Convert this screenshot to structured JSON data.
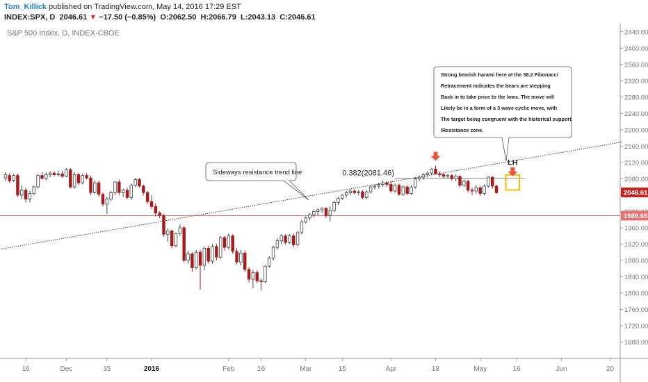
{
  "header": {
    "author": "Tom_Killick",
    "published_text": "published on TradingView.com, May 14, 2016 17:29 EST",
    "symbol": "INDEX:SPX, D",
    "last": "2046.61",
    "change_arrow": "▼",
    "change": "−17.50 (−0.85%)",
    "open_label": "O:",
    "open": "2062.50",
    "high_label": "H:",
    "high": "2066.79",
    "low_label": "L:",
    "low": "2043.13",
    "close_label": "C:",
    "close": "2046.61"
  },
  "chart_data": {
    "type": "candlestick",
    "title": "S&P 500 Index, D, INDEX-CBOE",
    "ylim": [
      1640,
      2460
    ],
    "y_ticks": [
      1680,
      1720,
      1760,
      1800,
      1840,
      1880,
      1920,
      1960,
      2000,
      2040,
      2080,
      2120,
      2160,
      2200,
      2240,
      2280,
      2320,
      2360,
      2400,
      2440
    ],
    "y_tick_labels": [
      "1680.00",
      "1720.00",
      "1760.00",
      "1800.00",
      "1840.00",
      "1880.00",
      "1920.00",
      "1960.00",
      "2000.00",
      "2040.00",
      "2080.00",
      "2120.00",
      "2160.00",
      "2200.00",
      "2240.00",
      "2280.00",
      "2320.00",
      "2360.00",
      "2400.00",
      "2440.00"
    ],
    "x_ticks": [
      {
        "i": 5,
        "label": "16"
      },
      {
        "i": 15,
        "label": "Dec"
      },
      {
        "i": 25,
        "label": "15"
      },
      {
        "i": 36,
        "label": "2016"
      },
      {
        "i": 55,
        "label": "Feb"
      },
      {
        "i": 63,
        "label": "16"
      },
      {
        "i": 74,
        "label": "Mar"
      },
      {
        "i": 83,
        "label": "15"
      },
      {
        "i": 95,
        "label": "Apr"
      },
      {
        "i": 106,
        "label": "18"
      },
      {
        "i": 117,
        "label": "May"
      },
      {
        "i": 126,
        "label": "16"
      },
      {
        "i": 137,
        "label": "Jun"
      },
      {
        "i": 149,
        "label": "20"
      }
    ],
    "x_count": 152,
    "candles": [
      {
        "o": 2082,
        "h": 2096,
        "l": 2074,
        "c": 2090
      },
      {
        "o": 2088,
        "h": 2094,
        "l": 2070,
        "c": 2075
      },
      {
        "o": 2076,
        "h": 2092,
        "l": 2072,
        "c": 2088
      },
      {
        "o": 2088,
        "h": 2092,
        "l": 2035,
        "c": 2040
      },
      {
        "o": 2040,
        "h": 2064,
        "l": 2030,
        "c": 2052
      },
      {
        "o": 2052,
        "h": 2058,
        "l": 2022,
        "c": 2030
      },
      {
        "o": 2030,
        "h": 2050,
        "l": 2022,
        "c": 2044
      },
      {
        "o": 2044,
        "h": 2064,
        "l": 2040,
        "c": 2060
      },
      {
        "o": 2060,
        "h": 2092,
        "l": 2056,
        "c": 2088
      },
      {
        "o": 2088,
        "h": 2096,
        "l": 2078,
        "c": 2081
      },
      {
        "o": 2081,
        "h": 2096,
        "l": 2076,
        "c": 2090
      },
      {
        "o": 2090,
        "h": 2098,
        "l": 2084,
        "c": 2094
      },
      {
        "o": 2094,
        "h": 2098,
        "l": 2086,
        "c": 2090
      },
      {
        "o": 2090,
        "h": 2100,
        "l": 2086,
        "c": 2092
      },
      {
        "o": 2092,
        "h": 2100,
        "l": 2082,
        "c": 2086
      },
      {
        "o": 2086,
        "h": 2106,
        "l": 2084,
        "c": 2102
      },
      {
        "o": 2102,
        "h": 2106,
        "l": 2056,
        "c": 2060
      },
      {
        "o": 2060,
        "h": 2096,
        "l": 2056,
        "c": 2090
      },
      {
        "o": 2090,
        "h": 2094,
        "l": 2064,
        "c": 2070
      },
      {
        "o": 2070,
        "h": 2092,
        "l": 2066,
        "c": 2088
      },
      {
        "o": 2088,
        "h": 2094,
        "l": 2078,
        "c": 2082
      },
      {
        "o": 2082,
        "h": 2088,
        "l": 2040,
        "c": 2046
      },
      {
        "o": 2046,
        "h": 2076,
        "l": 2042,
        "c": 2070
      },
      {
        "o": 2070,
        "h": 2076,
        "l": 2036,
        "c": 2042
      },
      {
        "o": 2042,
        "h": 2046,
        "l": 2012,
        "c": 2018
      },
      {
        "o": 2018,
        "h": 2036,
        "l": 1994,
        "c": 2030
      },
      {
        "o": 2030,
        "h": 2050,
        "l": 2024,
        "c": 2046
      },
      {
        "o": 2046,
        "h": 2074,
        "l": 2040,
        "c": 2072
      },
      {
        "o": 2072,
        "h": 2078,
        "l": 2040,
        "c": 2046
      },
      {
        "o": 2046,
        "h": 2056,
        "l": 2036,
        "c": 2052
      },
      {
        "o": 2052,
        "h": 2058,
        "l": 2030,
        "c": 2034
      },
      {
        "o": 2034,
        "h": 2068,
        "l": 2028,
        "c": 2064
      },
      {
        "o": 2064,
        "h": 2082,
        "l": 2060,
        "c": 2078
      },
      {
        "o": 2078,
        "h": 2082,
        "l": 2058,
        "c": 2062
      },
      {
        "o": 2062,
        "h": 2066,
        "l": 2040,
        "c": 2046
      },
      {
        "o": 2046,
        "h": 2050,
        "l": 2018,
        "c": 2024
      },
      {
        "o": 2024,
        "h": 2040,
        "l": 2006,
        "c": 2012
      },
      {
        "o": 2012,
        "h": 2020,
        "l": 1988,
        "c": 1996
      },
      {
        "o": 1996,
        "h": 2000,
        "l": 1984,
        "c": 1990
      },
      {
        "o": 1990,
        "h": 1994,
        "l": 1938,
        "c": 1944
      },
      {
        "o": 1944,
        "h": 1958,
        "l": 1926,
        "c": 1952
      },
      {
        "o": 1952,
        "h": 1956,
        "l": 1910,
        "c": 1916
      },
      {
        "o": 1916,
        "h": 1948,
        "l": 1912,
        "c": 1946
      },
      {
        "o": 1946,
        "h": 1968,
        "l": 1940,
        "c": 1960
      },
      {
        "o": 1960,
        "h": 1964,
        "l": 1874,
        "c": 1880
      },
      {
        "o": 1880,
        "h": 1904,
        "l": 1872,
        "c": 1896
      },
      {
        "o": 1896,
        "h": 1900,
        "l": 1852,
        "c": 1862
      },
      {
        "o": 1862,
        "h": 1906,
        "l": 1858,
        "c": 1900
      },
      {
        "o": 1900,
        "h": 1906,
        "l": 1808,
        "c": 1868
      },
      {
        "o": 1868,
        "h": 1914,
        "l": 1856,
        "c": 1910
      },
      {
        "o": 1910,
        "h": 1916,
        "l": 1872,
        "c": 1878
      },
      {
        "o": 1878,
        "h": 1920,
        "l": 1872,
        "c": 1914
      },
      {
        "o": 1914,
        "h": 1920,
        "l": 1880,
        "c": 1888
      },
      {
        "o": 1888,
        "h": 1940,
        "l": 1884,
        "c": 1936
      },
      {
        "o": 1936,
        "h": 1940,
        "l": 1904,
        "c": 1912
      },
      {
        "o": 1912,
        "h": 1946,
        "l": 1906,
        "c": 1940
      },
      {
        "o": 1940,
        "h": 1944,
        "l": 1896,
        "c": 1902
      },
      {
        "o": 1902,
        "h": 1910,
        "l": 1870,
        "c": 1876
      },
      {
        "o": 1876,
        "h": 1906,
        "l": 1868,
        "c": 1898
      },
      {
        "o": 1898,
        "h": 1904,
        "l": 1852,
        "c": 1858
      },
      {
        "o": 1858,
        "h": 1864,
        "l": 1826,
        "c": 1834
      },
      {
        "o": 1834,
        "h": 1856,
        "l": 1812,
        "c": 1850
      },
      {
        "o": 1850,
        "h": 1856,
        "l": 1824,
        "c": 1830
      },
      {
        "o": 1830,
        "h": 1836,
        "l": 1806,
        "c": 1828
      },
      {
        "o": 1828,
        "h": 1868,
        "l": 1824,
        "c": 1866
      },
      {
        "o": 1866,
        "h": 1890,
        "l": 1862,
        "c": 1886
      },
      {
        "o": 1886,
        "h": 1916,
        "l": 1880,
        "c": 1912
      },
      {
        "o": 1912,
        "h": 1934,
        "l": 1906,
        "c": 1928
      },
      {
        "o": 1928,
        "h": 1944,
        "l": 1920,
        "c": 1940
      },
      {
        "o": 1940,
        "h": 1944,
        "l": 1918,
        "c": 1924
      },
      {
        "o": 1924,
        "h": 1944,
        "l": 1920,
        "c": 1940
      },
      {
        "o": 1940,
        "h": 1946,
        "l": 1912,
        "c": 1918
      },
      {
        "o": 1918,
        "h": 1952,
        "l": 1914,
        "c": 1948
      },
      {
        "o": 1948,
        "h": 1978,
        "l": 1944,
        "c": 1974
      },
      {
        "o": 1974,
        "h": 1988,
        "l": 1970,
        "c": 1984
      },
      {
        "o": 1984,
        "h": 1996,
        "l": 1978,
        "c": 1992
      },
      {
        "o": 1992,
        "h": 2004,
        "l": 1986,
        "c": 2000
      },
      {
        "o": 2000,
        "h": 2008,
        "l": 1990,
        "c": 2004
      },
      {
        "o": 2004,
        "h": 2010,
        "l": 1996,
        "c": 2008
      },
      {
        "o": 2008,
        "h": 2010,
        "l": 1984,
        "c": 1990
      },
      {
        "o": 1990,
        "h": 2012,
        "l": 1976,
        "c": 2002
      },
      {
        "o": 2002,
        "h": 2026,
        "l": 1998,
        "c": 2022
      },
      {
        "o": 2022,
        "h": 2036,
        "l": 2016,
        "c": 2032
      },
      {
        "o": 2032,
        "h": 2042,
        "l": 2028,
        "c": 2040
      },
      {
        "o": 2040,
        "h": 2050,
        "l": 2034,
        "c": 2046
      },
      {
        "o": 2046,
        "h": 2054,
        "l": 2040,
        "c": 2050
      },
      {
        "o": 2050,
        "h": 2054,
        "l": 2042,
        "c": 2046
      },
      {
        "o": 2046,
        "h": 2052,
        "l": 2040,
        "c": 2048
      },
      {
        "o": 2048,
        "h": 2052,
        "l": 2030,
        "c": 2034
      },
      {
        "o": 2034,
        "h": 2052,
        "l": 2030,
        "c": 2048
      },
      {
        "o": 2048,
        "h": 2064,
        "l": 2044,
        "c": 2060
      },
      {
        "o": 2060,
        "h": 2066,
        "l": 2054,
        "c": 2062
      },
      {
        "o": 2062,
        "h": 2070,
        "l": 2056,
        "c": 2066
      },
      {
        "o": 2066,
        "h": 2076,
        "l": 2060,
        "c": 2070
      },
      {
        "o": 2070,
        "h": 2074,
        "l": 2060,
        "c": 2066
      },
      {
        "o": 2066,
        "h": 2074,
        "l": 2046,
        "c": 2050
      },
      {
        "o": 2050,
        "h": 2068,
        "l": 2046,
        "c": 2064
      },
      {
        "o": 2064,
        "h": 2068,
        "l": 2038,
        "c": 2042
      },
      {
        "o": 2042,
        "h": 2064,
        "l": 2038,
        "c": 2060
      },
      {
        "o": 2060,
        "h": 2064,
        "l": 2040,
        "c": 2044
      },
      {
        "o": 2044,
        "h": 2064,
        "l": 2040,
        "c": 2060
      },
      {
        "o": 2060,
        "h": 2084,
        "l": 2056,
        "c": 2080
      },
      {
        "o": 2080,
        "h": 2088,
        "l": 2074,
        "c": 2084
      },
      {
        "o": 2084,
        "h": 2094,
        "l": 2078,
        "c": 2090
      },
      {
        "o": 2090,
        "h": 2098,
        "l": 2084,
        "c": 2094
      },
      {
        "o": 2094,
        "h": 2106,
        "l": 2090,
        "c": 2104
      },
      {
        "o": 2104,
        "h": 2112,
        "l": 2090,
        "c": 2092
      },
      {
        "o": 2092,
        "h": 2098,
        "l": 2084,
        "c": 2090
      },
      {
        "o": 2090,
        "h": 2094,
        "l": 2080,
        "c": 2086
      },
      {
        "o": 2086,
        "h": 2092,
        "l": 2082,
        "c": 2088
      },
      {
        "o": 2088,
        "h": 2092,
        "l": 2076,
        "c": 2080
      },
      {
        "o": 2080,
        "h": 2090,
        "l": 2074,
        "c": 2086
      },
      {
        "o": 2086,
        "h": 2088,
        "l": 2060,
        "c": 2064
      },
      {
        "o": 2064,
        "h": 2078,
        "l": 2060,
        "c": 2074
      },
      {
        "o": 2074,
        "h": 2078,
        "l": 2046,
        "c": 2052
      },
      {
        "o": 2052,
        "h": 2058,
        "l": 2040,
        "c": 2050
      },
      {
        "o": 2050,
        "h": 2064,
        "l": 2044,
        "c": 2058
      },
      {
        "o": 2058,
        "h": 2062,
        "l": 2038,
        "c": 2044
      },
      {
        "o": 2044,
        "h": 2066,
        "l": 2040,
        "c": 2062
      },
      {
        "o": 2062,
        "h": 2086,
        "l": 2058,
        "c": 2084
      },
      {
        "o": 2084,
        "h": 2086,
        "l": 2056,
        "c": 2062
      },
      {
        "o": 2062,
        "h": 2066,
        "l": 2043,
        "c": 2046
      }
    ],
    "fib_level": 2081.46,
    "fib_label": "0.382(2081.46)",
    "current_price": 2046.61,
    "current_price_label": "2046.61",
    "support_level": 1989.65,
    "support_label": "1989.65",
    "trendline": {
      "from": {
        "i": -1,
        "y": 1908
      },
      "to": {
        "i": 152,
        "y": 2170
      }
    },
    "annotations": {
      "trend_callout": "Sideways resistance trend line",
      "lh_label": "LH",
      "comment_lines": [
        "Strong bearish harami here at the 38.2 Fibonacci",
        "Retracement indicates the bears are stepping",
        "Back in to take price to the lows. The move will",
        "Likely be in a form of a 3 wave cyclic move, with",
        "The target being congruent with the historical support",
        "/Resistance zone."
      ]
    },
    "colors": {
      "up": "#ffffff",
      "up_border": "#404040",
      "down": "#a61c1c",
      "marker": "#e8553c",
      "harami_box": "#f5b800",
      "support": "#e57373",
      "price_tag": "#c62828"
    },
    "grid": false
  }
}
